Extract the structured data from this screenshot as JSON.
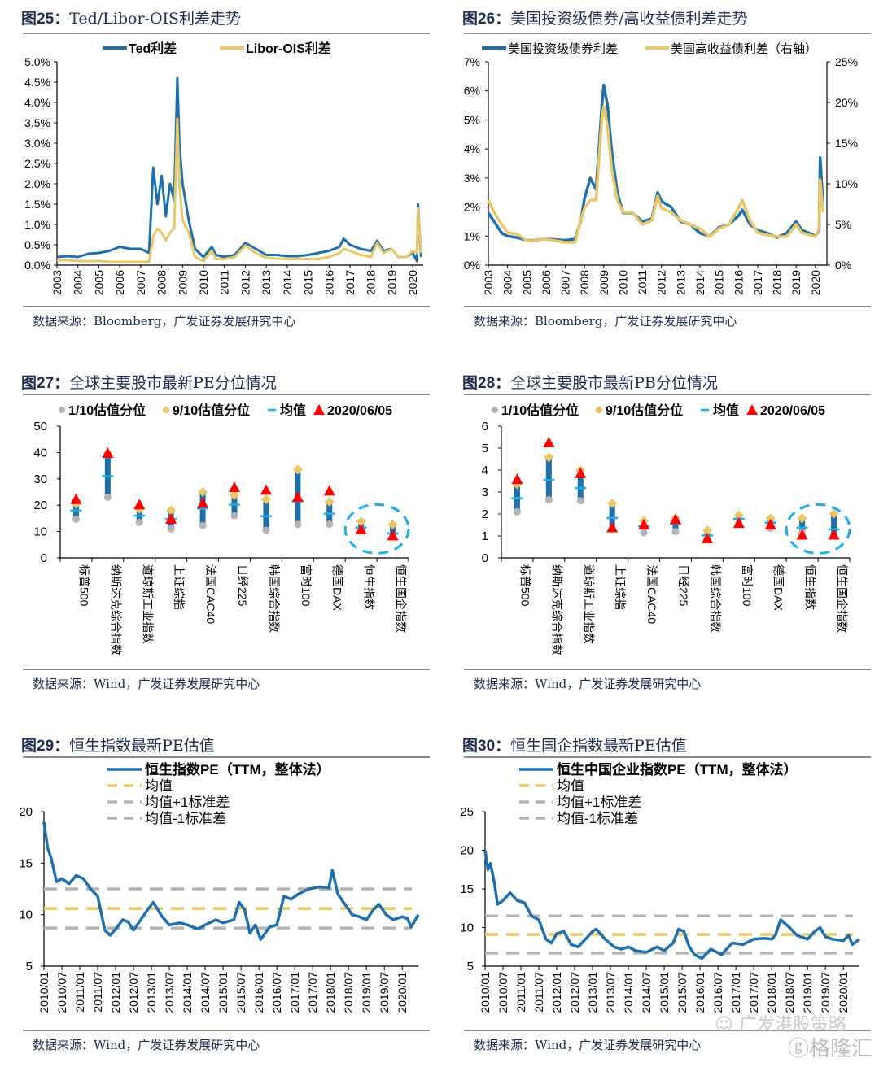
{
  "source_prefix": "数据来源：",
  "colors": {
    "blue": "#1f6fad",
    "gold": "#e8c766",
    "gray": "#b4b4b4",
    "red": "#ff0000",
    "cyan": "#1eaee8",
    "title": "#1d2d4f"
  },
  "watermark": {
    "line1": "广发港股策略",
    "line2": "格隆汇"
  },
  "chart_data": [
    {
      "id": "fig25",
      "type": "line",
      "fig_no": "图25：",
      "title": "Ted/Libor-OIS利差走势",
      "source": "Bloomberg，广发证券发展研究中心",
      "legend": [
        "Ted利差",
        "Libor-OIS利差"
      ],
      "ylim": [
        0,
        0.05
      ],
      "yticks": [
        "0.0%",
        "0.5%",
        "1.0%",
        "1.5%",
        "2.0%",
        "2.5%",
        "3.0%",
        "3.5%",
        "4.0%",
        "4.5%",
        "5.0%"
      ],
      "xticks": [
        "2003",
        "2004",
        "2005",
        "2006",
        "2007",
        "2008",
        "2009",
        "2010",
        "2011",
        "2012",
        "2013",
        "2014",
        "2015",
        "2016",
        "2017",
        "2018",
        "2019",
        "2020"
      ],
      "x": [
        2003.0,
        2003.5,
        2004.0,
        2004.5,
        2005.0,
        2005.5,
        2006.0,
        2006.5,
        2007.0,
        2007.4,
        2007.6,
        2007.8,
        2008.0,
        2008.2,
        2008.4,
        2008.6,
        2008.75,
        2008.85,
        2009.0,
        2009.3,
        2009.6,
        2010.0,
        2010.4,
        2010.6,
        2011.0,
        2011.5,
        2012.0,
        2012.5,
        2013.0,
        2013.5,
        2014.0,
        2014.5,
        2015.0,
        2015.5,
        2016.0,
        2016.5,
        2016.7,
        2017.0,
        2017.5,
        2018.0,
        2018.3,
        2018.6,
        2019.0,
        2019.3,
        2019.7,
        2020.0,
        2020.2,
        2020.25,
        2020.4
      ],
      "series": [
        {
          "name": "Ted利差",
          "values": [
            0.002,
            0.0022,
            0.002,
            0.0028,
            0.003,
            0.0035,
            0.0045,
            0.004,
            0.004,
            0.003,
            0.024,
            0.015,
            0.022,
            0.012,
            0.02,
            0.016,
            0.046,
            0.03,
            0.02,
            0.011,
            0.004,
            0.002,
            0.0045,
            0.0025,
            0.002,
            0.0025,
            0.0055,
            0.004,
            0.0025,
            0.0025,
            0.0022,
            0.0022,
            0.0025,
            0.003,
            0.0035,
            0.0045,
            0.0065,
            0.005,
            0.004,
            0.0035,
            0.006,
            0.0035,
            0.004,
            0.002,
            0.002,
            0.003,
            0.001,
            0.015,
            0.002
          ]
        },
        {
          "name": "Libor-OIS利差",
          "values": [
            0.0012,
            0.0012,
            0.001,
            0.001,
            0.001,
            0.0008,
            0.0008,
            0.0008,
            0.0008,
            0.0008,
            0.007,
            0.009,
            0.008,
            0.006,
            0.008,
            0.009,
            0.036,
            0.02,
            0.011,
            0.008,
            0.002,
            0.001,
            0.0035,
            0.0015,
            0.0015,
            0.002,
            0.0048,
            0.003,
            0.0018,
            0.0016,
            0.0015,
            0.0015,
            0.0015,
            0.0015,
            0.002,
            0.003,
            0.004,
            0.0035,
            0.0025,
            0.002,
            0.0055,
            0.003,
            0.004,
            0.002,
            0.002,
            0.0035,
            0.003,
            0.014,
            0.003
          ]
        }
      ]
    },
    {
      "id": "fig26",
      "type": "line",
      "fig_no": "图26：",
      "title": "美国投资级债券/高收益债利差走势",
      "source": "Bloomberg，广发证券发展研究中心",
      "legend": [
        "美国投资级债券利差",
        "美国高收益债利差（右轴）"
      ],
      "ylim": [
        0,
        0.07
      ],
      "y2lim": [
        0,
        0.25
      ],
      "yticks": [
        "0%",
        "1%",
        "2%",
        "3%",
        "4%",
        "5%",
        "6%",
        "7%"
      ],
      "y2ticks": [
        "0%",
        "5%",
        "10%",
        "15%",
        "20%",
        "25%"
      ],
      "xticks": [
        "2003",
        "2004",
        "2005",
        "2006",
        "2007",
        "2008",
        "2009",
        "2010",
        "2011",
        "2012",
        "2013",
        "2014",
        "2015",
        "2016",
        "2017",
        "2018",
        "2019",
        "2020"
      ],
      "x": [
        2003.0,
        2003.3,
        2003.7,
        2004.0,
        2004.5,
        2005.0,
        2005.4,
        2006.0,
        2006.5,
        2007.0,
        2007.5,
        2007.8,
        2008.0,
        2008.3,
        2008.6,
        2008.9,
        2009.0,
        2009.2,
        2009.4,
        2009.7,
        2010.0,
        2010.5,
        2011.0,
        2011.5,
        2011.8,
        2012.0,
        2012.5,
        2013.0,
        2013.5,
        2014.0,
        2014.5,
        2015.0,
        2015.5,
        2016.0,
        2016.2,
        2016.6,
        2017.0,
        2017.5,
        2018.0,
        2018.5,
        2019.0,
        2019.3,
        2019.7,
        2020.0,
        2020.2,
        2020.25,
        2020.4
      ],
      "series": [
        {
          "name": "美国投资级债券利差",
          "axis": "left",
          "values": [
            0.018,
            0.015,
            0.011,
            0.01,
            0.0095,
            0.0085,
            0.0085,
            0.009,
            0.0088,
            0.0085,
            0.009,
            0.015,
            0.023,
            0.03,
            0.026,
            0.055,
            0.062,
            0.055,
            0.04,
            0.025,
            0.018,
            0.018,
            0.015,
            0.016,
            0.025,
            0.022,
            0.02,
            0.015,
            0.014,
            0.011,
            0.01,
            0.013,
            0.014,
            0.017,
            0.019,
            0.014,
            0.012,
            0.011,
            0.0095,
            0.011,
            0.015,
            0.012,
            0.011,
            0.01,
            0.012,
            0.037,
            0.02
          ]
        },
        {
          "name": "美国高收益债利差（右轴）",
          "axis": "right",
          "values": [
            0.08,
            0.065,
            0.05,
            0.04,
            0.038,
            0.03,
            0.03,
            0.032,
            0.03,
            0.028,
            0.028,
            0.055,
            0.07,
            0.08,
            0.08,
            0.18,
            0.195,
            0.17,
            0.12,
            0.08,
            0.065,
            0.065,
            0.05,
            0.055,
            0.085,
            0.07,
            0.065,
            0.055,
            0.05,
            0.045,
            0.035,
            0.045,
            0.05,
            0.07,
            0.08,
            0.055,
            0.04,
            0.037,
            0.035,
            0.035,
            0.05,
            0.04,
            0.037,
            0.035,
            0.045,
            0.105,
            0.065
          ]
        }
      ]
    },
    {
      "id": "fig27",
      "type": "scatter",
      "fig_no": "图27：",
      "title": "全球主要股市最新PE分位情况",
      "source": "Wind，广发证券发展研究中心",
      "legend": [
        "1/10估值分位",
        "9/10估值分位",
        "均值",
        "2020/06/05"
      ],
      "ylim": [
        0,
        50
      ],
      "yticks": [
        "0",
        "10",
        "20",
        "30",
        "40",
        "50"
      ],
      "categories": [
        "标普500",
        "纳斯达克综合指数",
        "道琼斯工业指数",
        "上证综指",
        "法国CAC40",
        "日经225",
        "韩国综合指数",
        "富时100",
        "德国DAX",
        "恒生指数",
        "恒生国企指数"
      ],
      "series": [
        {
          "name": "1/10估值分位",
          "values": [
            14.7,
            23.0,
            13.5,
            11.0,
            12.3,
            16.0,
            10.5,
            12.7,
            12.8,
            10.5,
            8.5
          ]
        },
        {
          "name": "9/10估值分位",
          "values": [
            20.5,
            39.5,
            18.5,
            18.0,
            25.0,
            23.8,
            22.2,
            33.5,
            21.3,
            13.8,
            12.7
          ]
        },
        {
          "name": "均值",
          "values": [
            18.0,
            31.0,
            16.0,
            14.8,
            18.8,
            20.2,
            15.8,
            21.5,
            16.8,
            11.5,
            9.3
          ]
        },
        {
          "name": "2020/06/05",
          "values": [
            22.0,
            39.5,
            20.0,
            14.5,
            20.5,
            26.5,
            25.5,
            22.8,
            25.2,
            10.5,
            8.2
          ]
        }
      ],
      "highlight": [
        "恒生指数",
        "恒生国企指数"
      ]
    },
    {
      "id": "fig28",
      "type": "scatter",
      "fig_no": "图28：",
      "title": "全球主要股市最新PB分位情况",
      "source": "Wind，广发证券发展研究中心",
      "legend": [
        "1/10估值分位",
        "9/10估值分位",
        "均值",
        "2020/06/05"
      ],
      "ylim": [
        0,
        6
      ],
      "yticks": [
        "0",
        "1",
        "2",
        "3",
        "4",
        "5",
        "6"
      ],
      "categories": [
        "标普500",
        "纳斯达克综合指数",
        "道琼斯工业指数",
        "上证综指",
        "法国CAC40",
        "日经225",
        "韩国综合指数",
        "富时100",
        "德国DAX",
        "恒生指数",
        "恒生国企指数"
      ],
      "series": [
        {
          "name": "1/10估值分位",
          "values": [
            2.1,
            2.65,
            2.6,
            1.35,
            1.15,
            1.2,
            0.85,
            1.6,
            1.35,
            1.15,
            1.0
          ]
        },
        {
          "name": "9/10估值分位",
          "values": [
            3.35,
            4.58,
            3.98,
            2.48,
            1.68,
            1.8,
            1.25,
            1.95,
            1.8,
            1.8,
            2.02
          ]
        },
        {
          "name": "均值",
          "values": [
            2.72,
            3.55,
            3.18,
            1.82,
            1.45,
            1.55,
            1.02,
            1.78,
            1.6,
            1.38,
            1.3
          ]
        },
        {
          "name": "2020/06/05",
          "values": [
            3.55,
            5.22,
            3.82,
            1.35,
            1.48,
            1.72,
            0.85,
            1.55,
            1.48,
            1.02,
            1.02
          ]
        }
      ],
      "highlight": [
        "恒生指数",
        "恒生国企指数"
      ]
    },
    {
      "id": "fig29",
      "type": "line",
      "fig_no": "图29：",
      "title": "恒生指数最新PE估值",
      "source": "Wind，广发证券发展研究中心",
      "legend": [
        "恒生指数PE（TTM，整体法）",
        "均值",
        "均值+1标准差",
        "均值-1标准差"
      ],
      "ylim": [
        5,
        20
      ],
      "yticks": [
        "5",
        "10",
        "15",
        "20"
      ],
      "xticks": [
        "2010/01",
        "2010/07",
        "2011/01",
        "2011/07",
        "2012/01",
        "2012/07",
        "2013/01",
        "2013/07",
        "2014/01",
        "2014/07",
        "2015/01",
        "2015/07",
        "2016/01",
        "2016/07",
        "2017/01",
        "2017/07",
        "2018/01",
        "2018/07",
        "2019/01",
        "2019/07",
        "2020/01"
      ],
      "xlim": [
        2010.0,
        2020.45
      ],
      "x": [
        2010.0,
        2010.1,
        2010.2,
        2010.35,
        2010.5,
        2010.7,
        2010.9,
        2011.1,
        2011.3,
        2011.5,
        2011.7,
        2011.85,
        2012.0,
        2012.2,
        2012.35,
        2012.5,
        2012.7,
        2012.9,
        2013.05,
        2013.3,
        2013.5,
        2013.8,
        2014.0,
        2014.3,
        2014.5,
        2014.8,
        2015.0,
        2015.3,
        2015.45,
        2015.6,
        2015.75,
        2015.9,
        2016.05,
        2016.3,
        2016.5,
        2016.7,
        2016.9,
        2017.1,
        2017.4,
        2017.7,
        2017.95,
        2018.05,
        2018.2,
        2018.4,
        2018.6,
        2018.8,
        2019.0,
        2019.2,
        2019.35,
        2019.55,
        2019.75,
        2020.0,
        2020.15,
        2020.25,
        2020.45
      ],
      "series": [
        {
          "name": "恒生指数PE（TTM，整体法）",
          "values": [
            19.0,
            16.5,
            15.5,
            13.2,
            13.5,
            13.0,
            13.8,
            13.5,
            12.5,
            11.8,
            8.5,
            8.0,
            8.6,
            9.5,
            9.3,
            8.5,
            9.5,
            10.5,
            11.2,
            9.8,
            9.0,
            9.2,
            9.0,
            8.6,
            9.0,
            9.5,
            9.2,
            9.5,
            11.2,
            10.5,
            8.2,
            9.0,
            7.6,
            8.8,
            9.0,
            11.8,
            11.5,
            12.0,
            12.5,
            12.7,
            12.6,
            14.3,
            12.0,
            11.0,
            10.0,
            9.8,
            9.5,
            10.5,
            11.0,
            10.0,
            9.5,
            9.8,
            9.6,
            8.8,
            10.0
          ]
        },
        {
          "name": "均值",
          "constant": 10.6
        },
        {
          "name": "均值+1标准差",
          "constant": 12.5
        },
        {
          "name": "均值-1标准差",
          "constant": 8.7
        }
      ]
    },
    {
      "id": "fig30",
      "type": "line",
      "fig_no": "图30：",
      "title": "恒生国企指数最新PE估值",
      "source": "Wind，广发证券发展研究中心",
      "legend": [
        "恒生中国企业指数PE（TTM，整体法）",
        "均值",
        "均值+1标准差",
        "均值-1标准差"
      ],
      "ylim": [
        5,
        25
      ],
      "yticks": [
        "5",
        "10",
        "15",
        "20",
        "25"
      ],
      "xticks": [
        "2010/01",
        "2010/07",
        "2011/01",
        "2011/07",
        "2012/01",
        "2012/07",
        "2013/01",
        "2013/07",
        "2014/01",
        "2014/07",
        "2015/01",
        "2015/07",
        "2016/01",
        "2016/07",
        "2017/01",
        "2017/07",
        "2018/01",
        "2018/07",
        "2019/01",
        "2019/07",
        "2020/01"
      ],
      "xlim": [
        2010.0,
        2020.45
      ],
      "x": [
        2010.0,
        2010.08,
        2010.15,
        2010.25,
        2010.35,
        2010.5,
        2010.7,
        2010.9,
        2011.1,
        2011.3,
        2011.5,
        2011.7,
        2011.85,
        2012.0,
        2012.2,
        2012.4,
        2012.6,
        2012.8,
        2013.0,
        2013.1,
        2013.35,
        2013.6,
        2013.8,
        2014.0,
        2014.2,
        2014.5,
        2014.8,
        2015.0,
        2015.25,
        2015.4,
        2015.55,
        2015.7,
        2015.85,
        2016.05,
        2016.3,
        2016.6,
        2016.9,
        2017.2,
        2017.5,
        2017.8,
        2018.0,
        2018.1,
        2018.25,
        2018.5,
        2018.7,
        2019.0,
        2019.2,
        2019.35,
        2019.5,
        2019.7,
        2020.0,
        2020.15,
        2020.25,
        2020.45
      ],
      "series": [
        {
          "name": "恒生中国企业指数PE（TTM，整体法）",
          "values": [
            20.0,
            17.5,
            18.3,
            16.0,
            13.0,
            13.5,
            14.5,
            13.5,
            13.2,
            11.5,
            11.0,
            8.5,
            8.0,
            9.2,
            9.5,
            7.8,
            7.5,
            8.5,
            9.5,
            9.8,
            8.5,
            7.5,
            7.2,
            7.5,
            7.0,
            6.8,
            7.5,
            7.0,
            8.0,
            9.8,
            9.5,
            7.5,
            6.5,
            6.0,
            7.2,
            6.5,
            8.0,
            7.8,
            8.5,
            8.6,
            8.5,
            9.0,
            11.0,
            10.0,
            9.0,
            8.5,
            9.5,
            10.0,
            8.8,
            8.5,
            8.3,
            9.0,
            7.8,
            8.5
          ]
        },
        {
          "name": "均值",
          "constant": 9.1
        },
        {
          "name": "均值+1标准差",
          "constant": 11.5
        },
        {
          "name": "均值-1标准差",
          "constant": 6.7
        }
      ]
    }
  ]
}
